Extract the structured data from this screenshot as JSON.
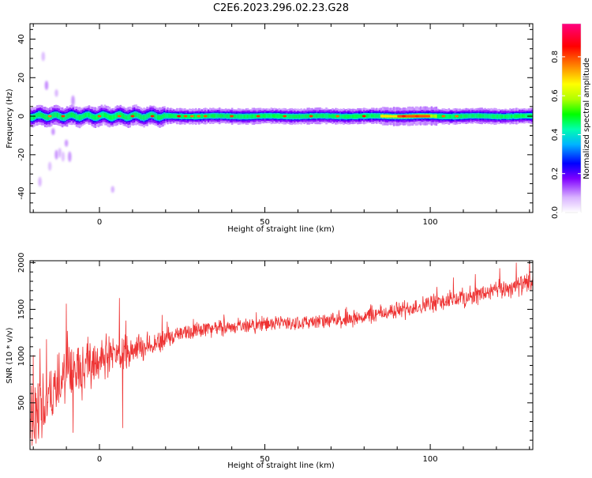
{
  "title": "C2E6.2023.296.02.23.G28",
  "chart_data": [
    {
      "type": "heatmap",
      "xlabel": "Height of straight line (km)",
      "ylabel": "Frequency (Hz)",
      "xlim": [
        -21,
        131
      ],
      "ylim": [
        -50,
        48
      ],
      "x_ticks": [
        0,
        50,
        100
      ],
      "y_ticks": [
        -40,
        -20,
        0,
        20,
        40
      ],
      "colorbar": {
        "label": "Normalized spectral amplitude",
        "range": [
          0,
          0.97
        ],
        "ticks": [
          0.0,
          0.2,
          0.4,
          0.6,
          0.8
        ],
        "colormap": [
          "#ffffff",
          "#d9b3ff",
          "#7f00ff",
          "#0000ff",
          "#00b3ff",
          "#00ffb0",
          "#00ff00",
          "#b0ff00",
          "#ffff00",
          "#ff8000",
          "#ff0000",
          "#ff0080"
        ]
      },
      "band": {
        "center_frequency": 0,
        "core_halfwidth": 1.5,
        "outer_halfwidth": 4,
        "peak_region": [
          85,
          102
        ],
        "hot_spots": [
          -15,
          -11,
          0,
          6,
          10,
          16,
          24,
          26,
          28,
          30,
          32,
          40,
          48,
          56,
          64,
          72,
          80,
          92,
          96,
          104,
          108
        ]
      },
      "scatter_blobs": [
        {
          "x": -17,
          "y": 31
        },
        {
          "x": -16,
          "y": 16
        },
        {
          "x": -15,
          "y": -3
        },
        {
          "x": -14,
          "y": -8
        },
        {
          "x": -13,
          "y": -20
        },
        {
          "x": -12,
          "y": -19
        },
        {
          "x": -11,
          "y": -21
        },
        {
          "x": -15,
          "y": -26
        },
        {
          "x": -10,
          "y": -14
        },
        {
          "x": -9,
          "y": -21
        },
        {
          "x": 4,
          "y": -38
        },
        {
          "x": -18,
          "y": -34
        },
        {
          "x": -13,
          "y": 12
        },
        {
          "x": -8,
          "y": 8
        }
      ]
    },
    {
      "type": "line",
      "xlabel": "Height of straight line (km)",
      "ylabel": "SNR (10 * v/v)",
      "xlim": [
        -21,
        131
      ],
      "ylim": [
        0,
        2020
      ],
      "x_ticks": [
        0,
        50,
        100
      ],
      "y_ticks": [
        500,
        1000,
        1500,
        2000
      ],
      "color": "#ee3333",
      "trend": [
        {
          "x": -21,
          "y": 350
        },
        {
          "x": -15,
          "y": 550
        },
        {
          "x": -10,
          "y": 800
        },
        {
          "x": -5,
          "y": 900
        },
        {
          "x": 0,
          "y": 980
        },
        {
          "x": 5,
          "y": 1020
        },
        {
          "x": 10,
          "y": 1080
        },
        {
          "x": 15,
          "y": 1110
        },
        {
          "x": 20,
          "y": 1180
        },
        {
          "x": 25,
          "y": 1240
        },
        {
          "x": 30,
          "y": 1290
        },
        {
          "x": 40,
          "y": 1310
        },
        {
          "x": 50,
          "y": 1340
        },
        {
          "x": 60,
          "y": 1360
        },
        {
          "x": 70,
          "y": 1370
        },
        {
          "x": 80,
          "y": 1420
        },
        {
          "x": 90,
          "y": 1490
        },
        {
          "x": 100,
          "y": 1560
        },
        {
          "x": 110,
          "y": 1620
        },
        {
          "x": 120,
          "y": 1700
        },
        {
          "x": 131,
          "y": 1790
        }
      ],
      "noise_amplitude": [
        {
          "x": -21,
          "y": 450
        },
        {
          "x": -5,
          "y": 320
        },
        {
          "x": 10,
          "y": 200
        },
        {
          "x": 25,
          "y": 110
        },
        {
          "x": 60,
          "y": 90
        },
        {
          "x": 100,
          "y": 120
        },
        {
          "x": 131,
          "y": 130
        }
      ],
      "spikes": [
        {
          "x": -20,
          "y": 1010
        },
        {
          "x": -18,
          "y": 1080
        },
        {
          "x": -16,
          "y": 1180
        },
        {
          "x": -10,
          "y": 1560
        },
        {
          "x": -8,
          "y": 180
        },
        {
          "x": -5,
          "y": 1100
        },
        {
          "x": 6,
          "y": 1620
        },
        {
          "x": 7,
          "y": 230
        },
        {
          "x": 8,
          "y": 1380
        },
        {
          "x": 19,
          "y": 1440
        },
        {
          "x": 102,
          "y": 1740
        },
        {
          "x": 107,
          "y": 1840
        },
        {
          "x": 121,
          "y": 1940
        },
        {
          "x": 126,
          "y": 2000
        },
        {
          "x": 130,
          "y": 2010
        }
      ]
    }
  ]
}
